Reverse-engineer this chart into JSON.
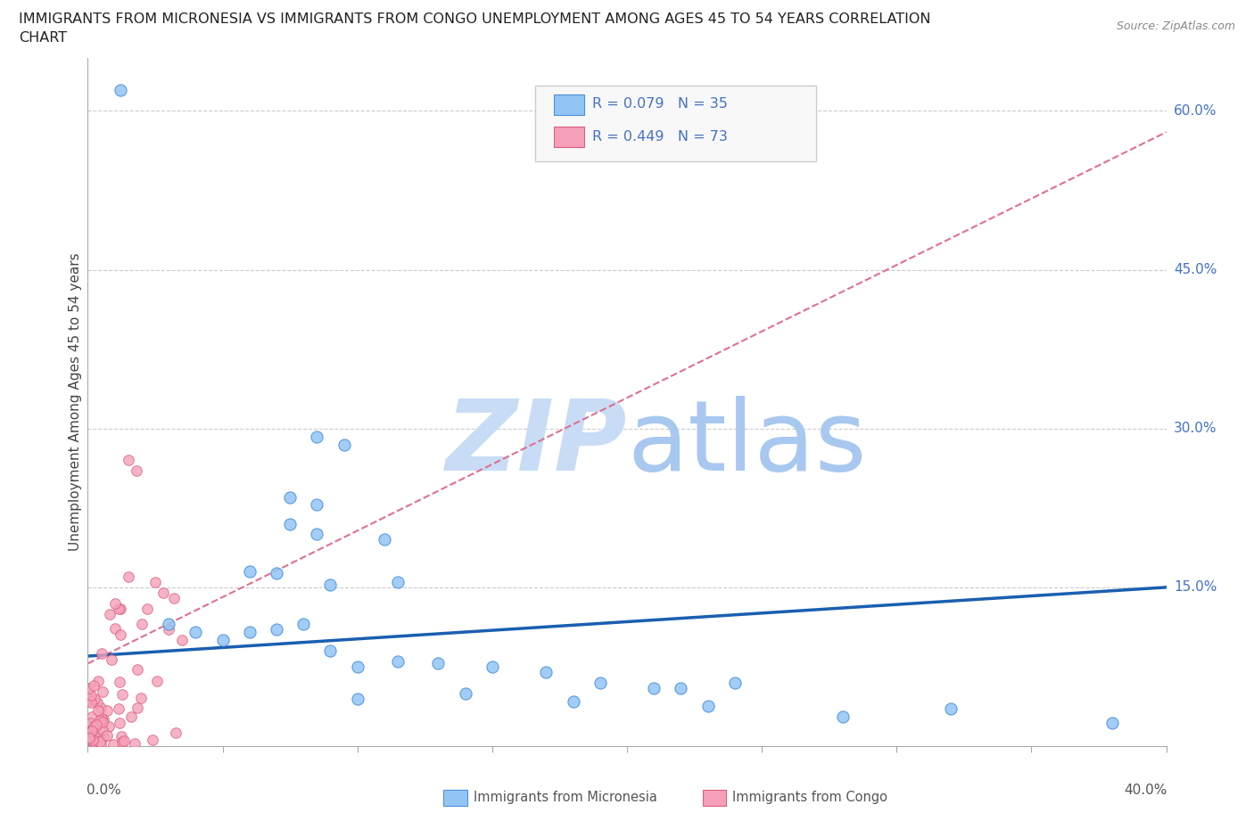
{
  "title_line1": "IMMIGRANTS FROM MICRONESIA VS IMMIGRANTS FROM CONGO UNEMPLOYMENT AMONG AGES 45 TO 54 YEARS CORRELATION",
  "title_line2": "CHART",
  "source_text": "Source: ZipAtlas.com",
  "ylabel": "Unemployment Among Ages 45 to 54 years",
  "ytick_labels": [
    "60.0%",
    "45.0%",
    "30.0%",
    "15.0%"
  ],
  "ytick_values": [
    0.6,
    0.45,
    0.3,
    0.15
  ],
  "xtick_label_left": "0.0%",
  "xtick_label_right": "40.0%",
  "xlim": [
    0.0,
    0.4
  ],
  "ylim": [
    0.0,
    0.65
  ],
  "R_micronesia": 0.079,
  "N_micronesia": 35,
  "R_congo": 0.449,
  "N_congo": 73,
  "color_micronesia": "#92C5F5",
  "color_congo": "#F5A0B8",
  "edge_micronesia": "#4A90D9",
  "edge_congo": "#D96080",
  "trendline_micronesia_color": "#1A5FB0",
  "trendline_congo_color": "#E07090",
  "watermark_zip_color": "#C8DCF5",
  "watermark_atlas_color": "#A8C8F0",
  "background_color": "#FFFFFF",
  "legend_box_color": "#F8F8F8",
  "legend_border_color": "#CCCCCC",
  "grid_color": "#CCCCCC",
  "axis_color": "#AAAAAA",
  "right_label_color": "#4472C4",
  "ylabel_color": "#444444",
  "bottom_legend_text_color": "#555555"
}
